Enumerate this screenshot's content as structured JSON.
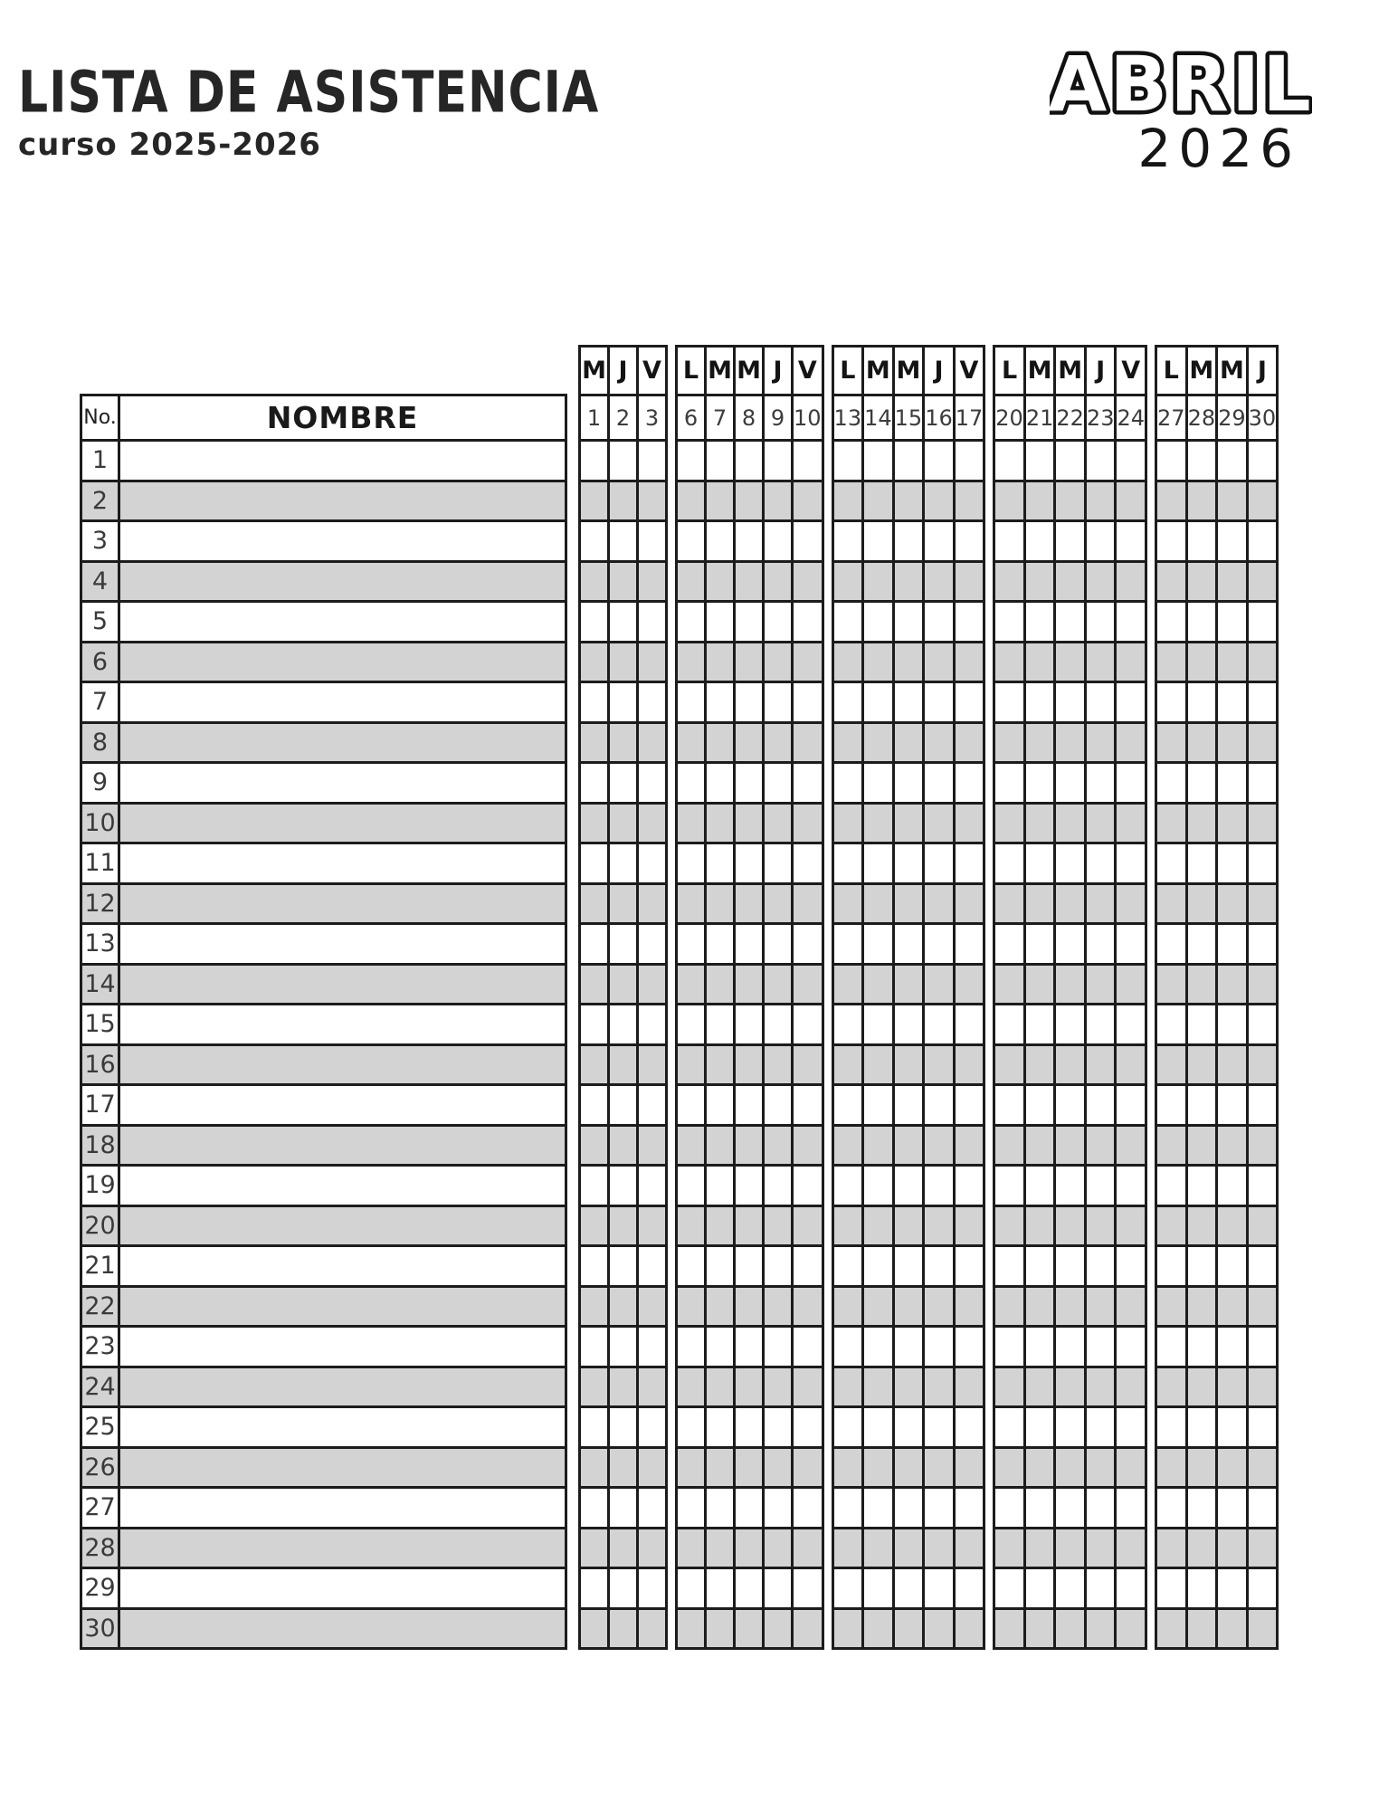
{
  "page": {
    "title": "LISTA DE ASISTENCIA",
    "subtitle": "curso 2025-2026",
    "month": "ABRIL",
    "year": "2026"
  },
  "table": {
    "no_header": "No.",
    "name_header": "NOMBRE",
    "weeks": [
      {
        "days": [
          "M",
          "J",
          "V"
        ],
        "dates": [
          "1",
          "2",
          "3"
        ]
      },
      {
        "days": [
          "L",
          "M",
          "M",
          "J",
          "V"
        ],
        "dates": [
          "6",
          "7",
          "8",
          "9",
          "10"
        ]
      },
      {
        "days": [
          "L",
          "M",
          "M",
          "J",
          "V"
        ],
        "dates": [
          "13",
          "14",
          "15",
          "16",
          "17"
        ]
      },
      {
        "days": [
          "L",
          "M",
          "M",
          "J",
          "V"
        ],
        "dates": [
          "20",
          "21",
          "22",
          "23",
          "24"
        ]
      },
      {
        "days": [
          "L",
          "M",
          "M",
          "J"
        ],
        "dates": [
          "27",
          "28",
          "29",
          "30"
        ]
      }
    ],
    "row_numbers": [
      "1",
      "2",
      "3",
      "4",
      "5",
      "6",
      "7",
      "8",
      "9",
      "10",
      "11",
      "12",
      "13",
      "14",
      "15",
      "16",
      "17",
      "18",
      "19",
      "20",
      "21",
      "22",
      "23",
      "24",
      "25",
      "26",
      "27",
      "28",
      "29",
      "30"
    ]
  },
  "colors": {
    "stripe": "#d3d3d3",
    "line": "#1c1c1c",
    "ink": "#262626"
  }
}
